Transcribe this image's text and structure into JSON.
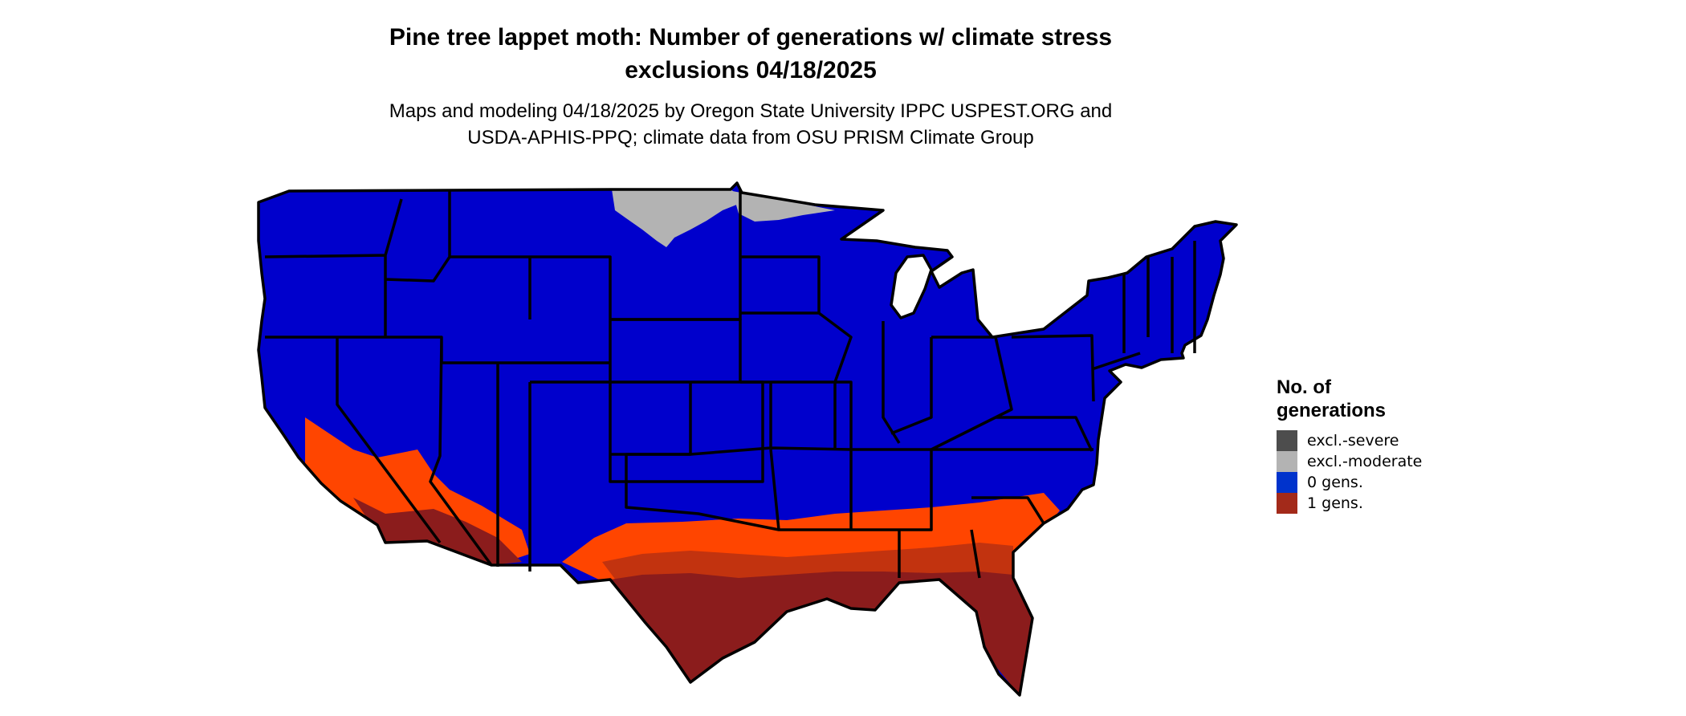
{
  "title_line1": "Pine tree lappet moth: Number of generations w/ climate stress",
  "title_line2": "exclusions 04/18/2025",
  "subtitle_line1": "Maps and modeling 04/18/2025 by Oregon State University IPPC USPEST.ORG and",
  "subtitle_line2": "USDA-APHIS-PPQ; climate data from OSU PRISM Climate Group",
  "legend": {
    "title_line1": "No. of",
    "title_line2": "generations",
    "items": [
      {
        "label": "excl.-severe",
        "color": "#4d4d4d"
      },
      {
        "label": "excl.-moderate",
        "color": "#b3b3b3"
      },
      {
        "label": "0 gens.",
        "color": "#0033cc"
      },
      {
        "label": "1 gens.",
        "color": "#a32a1a"
      }
    ]
  },
  "map_colors": {
    "zero_gens_fill": "#0000cc",
    "one_gen_dark": "#8b1c1c",
    "one_gen_mid": "#c2330f",
    "one_gen_light": "#ff4500",
    "excl_moderate": "#b3b3b3",
    "boundary": "#000000"
  }
}
